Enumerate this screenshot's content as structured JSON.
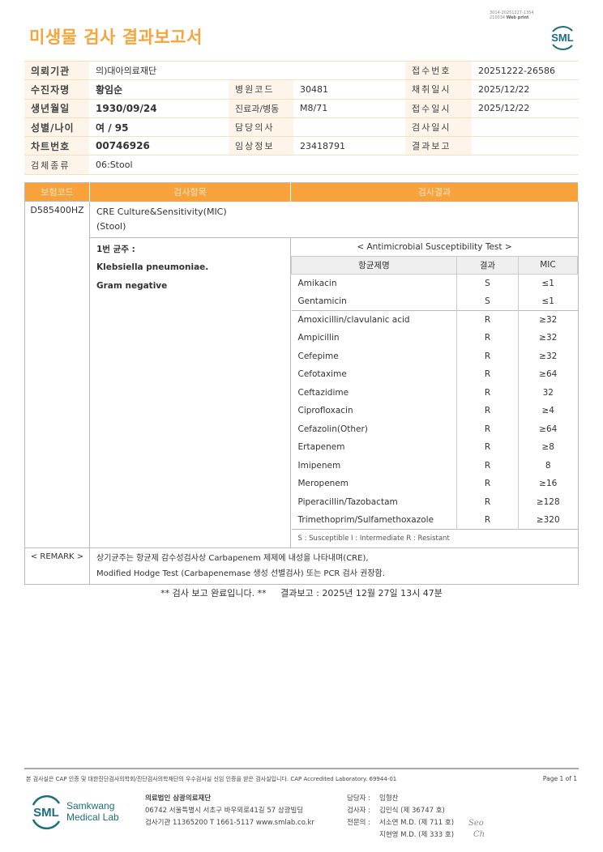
{
  "print_info": {
    "line1": "3014-20251227-1354",
    "line2_id": "210034",
    "line2_label": "Web print"
  },
  "title": "미생물 검사 결과보고서",
  "logo_text": "SML",
  "info": {
    "requester_label": "의뢰기관",
    "requester": "의)대아의료재단",
    "accession_label": "접수번호",
    "accession": "20251222-26586",
    "patient_label": "수진자명",
    "patient": "황임순",
    "hospital_code_label": "병원코드",
    "hospital_code": "30481",
    "collected_label": "채취일시",
    "collected": "2025/12/22",
    "dob_label": "생년월일",
    "dob": "1930/09/24",
    "dept_label": "진료과/병동",
    "dept": "M8/71",
    "received_label": "접수일시",
    "received": "2025/12/22",
    "sex_age_label": "성별/나이",
    "sex_age": "여 / 95",
    "doctor_label": "담당의사",
    "doctor": "",
    "tested_label": "검사일시",
    "tested": "",
    "chart_label": "차트번호",
    "chart": "00746926",
    "clinical_label": "임상정보",
    "clinical": "23418791",
    "reported_label": "결과보고",
    "reported": "",
    "specimen_label": "검체종류",
    "specimen": "06:Stool"
  },
  "main": {
    "headers": [
      "보험코드",
      "검사항목",
      "검사결과"
    ],
    "code": "D585400HZ",
    "test_name": "CRE Culture&Sensitivity(MIC)",
    "test_specimen": "(Stool)",
    "isolate_label": "1번 균주 :",
    "organism": "Klebsiella pneumoniae.",
    "gram": "Gram negative",
    "ast_title": "< Antimicrobial Susceptibility Test >",
    "ast_headers": [
      "항균제명",
      "결과",
      "MIC"
    ],
    "ast_rows": [
      {
        "drug": "Amikacin",
        "result": "S",
        "mic": "≤1"
      },
      {
        "drug": "Gentamicin",
        "result": "S",
        "mic": "≤1"
      },
      {
        "drug": "Amoxicillin/clavulanic acid",
        "result": "R",
        "mic": "≥32"
      },
      {
        "drug": "Ampicillin",
        "result": "R",
        "mic": "≥32"
      },
      {
        "drug": "Cefepime",
        "result": "R",
        "mic": "≥32"
      },
      {
        "drug": "Cefotaxime",
        "result": "R",
        "mic": "≥64"
      },
      {
        "drug": "Ceftazidime",
        "result": "R",
        "mic": "32"
      },
      {
        "drug": "Ciprofloxacin",
        "result": "R",
        "mic": "≥4"
      },
      {
        "drug": "Cefazolin(Other)",
        "result": "R",
        "mic": "≥64"
      },
      {
        "drug": "Ertapenem",
        "result": "R",
        "mic": "≥8"
      },
      {
        "drug": "Imipenem",
        "result": "R",
        "mic": "8"
      },
      {
        "drug": "Meropenem",
        "result": "R",
        "mic": "≥16"
      },
      {
        "drug": "Piperacillin/Tazobactam",
        "result": "R",
        "mic": "≥128"
      },
      {
        "drug": "Trimethoprim/Sulfamethoxazole",
        "result": "R",
        "mic": "≥320"
      }
    ],
    "legend": "S : Susceptible   I : Intermediate   R : Resistant",
    "remark_label": "< REMARK >",
    "remark_1": "상기균주는 항균제 감수성검사상 Carbapenem 제제에 내성을 나타내며(CRE),",
    "remark_2": "Modified Hodge Test (Carbapenemase 생성 선별검사) 또는 PCR 검사 권장함."
  },
  "completion": "** 검사 보고 완료입니다. **     결과보고 : 2025년 12월 27일 13시 47분",
  "footer": {
    "note": "본 검사실은 CAP 인증 및 대한진단검사의학회/진단검사의학재단의 우수검사실 신임 인증을 받은 검사실입니다.  CAP Accredited Laboratory. 69944-01",
    "page": "Page 1 of 1",
    "logo_name_1": "Samkwang",
    "logo_name_2": "Medical Lab",
    "org": "의료법인 삼광의료재단",
    "address": "06742 서울특별시 서초구 바우뫼로41길 57 삼광빌딩",
    "contact": "검사기관 11365200  T 1661-5117  www.smlab.co.kr",
    "manager_label": "담당자 :",
    "manager": "임형찬",
    "tester_label": "검사자 :",
    "tester": "김민식 (제 36747 호)",
    "specialist_label": "전문의 :",
    "specialist_1": "서소연 M.D. (제 711 호)",
    "specialist_2": "지현영 M.D. (제 333 호)",
    "signature_1": "Seo",
    "signature_2": "Ch"
  },
  "colors": {
    "accent": "#f7a23a",
    "title": "#f5a53c",
    "logo": "#1d6e7c"
  }
}
